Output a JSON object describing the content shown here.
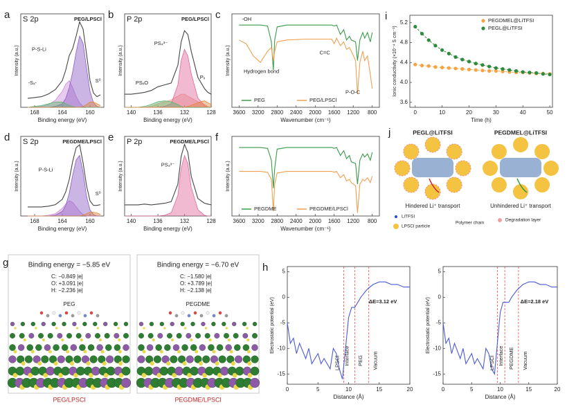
{
  "chart_data": [
    {
      "type": "line",
      "panel": "a",
      "title": "S 2p",
      "subtitle": "PEG/LPSCl",
      "xlabel": "Binding energy (eV)",
      "ylabel": "Intensity (a.u.)",
      "x": [
        169,
        168,
        167,
        166,
        165,
        164,
        163.5,
        163,
        162.5,
        162,
        161.5,
        161,
        160.5,
        160,
        159.5,
        159,
        158.5
      ],
      "xlim": [
        170,
        158
      ],
      "xticks": [
        168,
        164,
        160
      ],
      "ylim": [
        0,
        105
      ],
      "series": [
        {
          "color": "#c98ad8",
          "fill": true,
          "values": [
            0,
            0,
            1,
            3,
            8,
            18,
            26,
            30,
            22,
            12,
            5,
            1,
            0,
            0,
            0,
            0,
            0
          ]
        },
        {
          "color": "#8a5cc4",
          "fill": true,
          "values": [
            0,
            0,
            0,
            0,
            1,
            4,
            10,
            22,
            40,
            62,
            80,
            72,
            44,
            18,
            5,
            1,
            0
          ]
        },
        {
          "color": "#5bb56b",
          "fill": true,
          "values": [
            0,
            1,
            2,
            4,
            6,
            6,
            4,
            2,
            1,
            0,
            0,
            0,
            0,
            0,
            0,
            0,
            0
          ]
        },
        {
          "color": "#e0883a",
          "fill": true,
          "values": [
            0,
            0,
            0,
            0,
            0,
            0,
            0,
            0,
            0,
            0,
            0,
            1,
            3,
            6,
            6,
            4,
            2
          ]
        },
        {
          "color": "#444444",
          "values": [
            10,
            11,
            12,
            15,
            20,
            30,
            42,
            58,
            66,
            80,
            96,
            88,
            60,
            30,
            16,
            12,
            14
          ]
        }
      ],
      "annotations": [
        "P-S-Li",
        "-Sₓ-",
        "S⁰"
      ]
    },
    {
      "type": "line",
      "panel": "b",
      "title": "P 2p",
      "subtitle": "PEG/LPSCl",
      "xlabel": "Binding energy (eV)",
      "ylabel": "Intensity (a.u.)",
      "x": [
        141,
        140,
        139,
        138,
        137,
        136,
        135,
        134,
        133,
        132.5,
        132,
        131.5,
        131,
        130,
        129,
        128.5,
        128
      ],
      "xlim": [
        141,
        128
      ],
      "xticks": [
        140,
        136,
        132,
        128
      ],
      "ylim": [
        0,
        100
      ],
      "series": [
        {
          "color": "#f0a08c",
          "fill": true,
          "values": [
            0,
            0,
            0,
            0,
            1,
            4,
            6,
            8,
            12,
            14,
            14,
            12,
            10,
            6,
            3,
            1,
            0
          ]
        },
        {
          "color": "#e0679a",
          "fill": true,
          "values": [
            0,
            0,
            0,
            0,
            0,
            0,
            1,
            4,
            24,
            50,
            62,
            55,
            36,
            10,
            2,
            0,
            0
          ]
        },
        {
          "color": "#5bb56b",
          "fill": true,
          "values": [
            0,
            0,
            0,
            1,
            3,
            6,
            7,
            6,
            3,
            1,
            0,
            0,
            0,
            0,
            0,
            0,
            0
          ]
        },
        {
          "color": "#e0883a",
          "fill": true,
          "values": [
            0,
            0,
            0,
            0,
            0,
            0,
            0,
            0,
            0,
            0,
            0,
            1,
            2,
            5,
            7,
            5,
            3
          ]
        },
        {
          "color": "#444444",
          "values": [
            14,
            14,
            15,
            16,
            18,
            22,
            24,
            26,
            45,
            70,
            82,
            78,
            60,
            32,
            20,
            16,
            14
          ]
        }
      ],
      "annotations": [
        "PS₄³⁻",
        "PSₓO",
        "Pₓ"
      ]
    },
    {
      "type": "line",
      "panel": "c",
      "xlabel": "Wavenumber (cm⁻¹)",
      "ylabel": "Intensity (a.u.)",
      "x": [
        3600,
        3450,
        3300,
        3150,
        3000,
        2920,
        2880,
        2850,
        2800,
        2600,
        2200,
        1800,
        1650,
        1600,
        1550,
        1470,
        1400,
        1340,
        1280,
        1240,
        1150,
        1110,
        1060,
        1000,
        960,
        900,
        840,
        800
      ],
      "xlim": [
        3750,
        650
      ],
      "xticks": [
        3600,
        3200,
        2800,
        2400,
        2000,
        1600,
        1200,
        800
      ],
      "ylim": [
        0,
        100
      ],
      "series": [
        {
          "name": "PEG",
          "color": "#3a9a4a",
          "values": [
            88,
            88,
            88,
            88,
            87,
            70,
            40,
            72,
            86,
            88,
            88,
            88,
            88,
            87,
            88,
            78,
            83,
            72,
            76,
            72,
            70,
            50,
            72,
            80,
            74,
            80,
            70,
            80
          ]
        },
        {
          "name": "PEG/LPSCl",
          "color": "#f0a050",
          "values": [
            72,
            68,
            55,
            48,
            60,
            64,
            50,
            60,
            70,
            72,
            73,
            73,
            73,
            68,
            74,
            66,
            70,
            62,
            64,
            60,
            50,
            14,
            48,
            60,
            50,
            55,
            35,
            20
          ]
        }
      ],
      "annotations": [
        "-OH",
        "Hydrogen bond",
        "C=C",
        "P-O-C"
      ]
    },
    {
      "type": "scatter",
      "panel": "i",
      "xlabel": "Time (h)",
      "ylabel": "Ionic conductivity (×10⁻⁴ S cm⁻¹)",
      "x": [
        0,
        2.5,
        5,
        7.5,
        10,
        12.5,
        15,
        17.5,
        20,
        22.5,
        25,
        27.5,
        30,
        32.5,
        35,
        37.5,
        40,
        42.5,
        45,
        47.5,
        50
      ],
      "xlim": [
        -2,
        51
      ],
      "xticks": [
        0,
        10,
        20,
        30,
        40,
        50
      ],
      "ylim": [
        3.5,
        5.35
      ],
      "yticks": [
        3.6,
        {
          "value": 4,
          "label": "4.0"
        },
        4.4,
        4.8,
        5.2
      ],
      "series": [
        {
          "name": "PEGDMEL@LiTFSI",
          "color": "#f5a343",
          "values": [
            4.36,
            4.34,
            4.33,
            4.31,
            4.3,
            4.29,
            4.28,
            4.27,
            4.26,
            4.25,
            4.24,
            4.23,
            4.23,
            4.22,
            4.21,
            4.2,
            4.2,
            4.19,
            4.18,
            4.18,
            4.17
          ]
        },
        {
          "name": "PEGL@LiTFSI",
          "color": "#2e8b3e",
          "values": [
            5.12,
            4.98,
            4.85,
            4.74,
            4.65,
            4.58,
            4.51,
            4.46,
            4.42,
            4.38,
            4.35,
            4.32,
            4.29,
            4.27,
            4.25,
            4.23,
            4.21,
            4.2,
            4.19,
            4.17,
            4.16
          ]
        }
      ]
    },
    {
      "type": "line",
      "panel": "d",
      "title": "S 2p",
      "subtitle": "PEGDME/LPSCl",
      "xlabel": "Binding energy (eV)",
      "ylabel": "Intensity (a.u.)",
      "x": [
        169,
        168,
        167,
        166,
        165,
        164,
        163.5,
        163,
        162.5,
        162,
        161.5,
        161,
        160.5,
        160,
        159.5,
        159,
        158.5
      ],
      "xlim": [
        170,
        158
      ],
      "xticks": [
        168,
        164,
        160
      ],
      "ylim": [
        0,
        105
      ],
      "series": [
        {
          "color": "#c98ad8",
          "fill": true,
          "values": [
            0,
            0,
            0,
            1,
            3,
            10,
            16,
            20,
            18,
            12,
            6,
            2,
            0,
            0,
            0,
            0,
            0
          ]
        },
        {
          "color": "#8a5cc4",
          "fill": true,
          "values": [
            0,
            0,
            0,
            0,
            1,
            6,
            14,
            30,
            54,
            74,
            80,
            58,
            26,
            8,
            2,
            0,
            0
          ]
        },
        {
          "color": "#e0883a",
          "fill": true,
          "values": [
            0,
            0,
            0,
            0,
            0,
            0,
            0,
            0,
            0,
            0,
            0,
            1,
            3,
            5,
            5,
            4,
            2
          ]
        },
        {
          "color": "#444444",
          "values": [
            12,
            12,
            12,
            13,
            15,
            22,
            32,
            48,
            72,
            90,
            94,
            70,
            40,
            20,
            14,
            14,
            15
          ]
        }
      ],
      "annotations": [
        "P-S-Li",
        "S⁰"
      ]
    },
    {
      "type": "line",
      "panel": "e",
      "title": "P 2p",
      "subtitle": "PEGDME/LPSCl",
      "xlabel": "Binding energy (eV)",
      "ylabel": "Intensity (a.u.)",
      "x": [
        141,
        140,
        139,
        138,
        137,
        136,
        135,
        134,
        133,
        132.5,
        132,
        131.5,
        131,
        130,
        129,
        128.5,
        128
      ],
      "xlim": [
        141,
        128
      ],
      "xticks": [
        140,
        136,
        132,
        128
      ],
      "ylim": [
        0,
        100
      ],
      "series": [
        {
          "color": "#e0679a",
          "fill": true,
          "values": [
            0,
            0,
            0,
            0,
            0,
            0,
            1,
            4,
            26,
            60,
            76,
            66,
            36,
            8,
            1,
            0,
            0
          ]
        },
        {
          "color": "#444444",
          "values": [
            14,
            14,
            14,
            15,
            14,
            15,
            16,
            18,
            40,
            75,
            90,
            80,
            50,
            22,
            16,
            15,
            14
          ]
        }
      ],
      "annotations": [
        "PS₄³⁻"
      ]
    },
    {
      "type": "line",
      "panel": "f",
      "xlabel": "Wavenumber (cm⁻¹)",
      "ylabel": "Intensity (a.u.)",
      "x": [
        3600,
        3450,
        3300,
        3150,
        3000,
        2920,
        2880,
        2850,
        2800,
        2600,
        2200,
        1800,
        1650,
        1600,
        1550,
        1470,
        1400,
        1340,
        1280,
        1240,
        1150,
        1110,
        1060,
        1000,
        960,
        900,
        840,
        800
      ],
      "xlim": [
        3750,
        650
      ],
      "xticks": [
        3600,
        3200,
        2800,
        2400,
        2000,
        1600,
        1200,
        800
      ],
      "ylim": [
        0,
        100
      ],
      "series": [
        {
          "name": "PEGDME",
          "color": "#3a9a4a",
          "values": [
            86,
            86,
            86,
            86,
            85,
            70,
            35,
            60,
            84,
            86,
            86,
            86,
            86,
            85,
            86,
            76,
            82,
            72,
            76,
            68,
            66,
            40,
            70,
            78,
            74,
            78,
            70,
            80
          ]
        },
        {
          "name": "PEGDME/LPSCl",
          "color": "#f0a050",
          "values": [
            56,
            56,
            56,
            56,
            55,
            46,
            6,
            40,
            54,
            56,
            56,
            56,
            56,
            55,
            56,
            48,
            52,
            44,
            46,
            42,
            38,
            4,
            40,
            46,
            44,
            48,
            42,
            50
          ]
        }
      ]
    },
    {
      "type": "line",
      "panel": "h",
      "xlabel": "Distance (Å)",
      "ylabel": "Electrostatic potential (eV)",
      "x": [
        0,
        0.5,
        1,
        1.5,
        2,
        3,
        3.5,
        4,
        5,
        5.5,
        6,
        7,
        7.5,
        8,
        8.5,
        9,
        9.5,
        10,
        10.5,
        11,
        11.5,
        12,
        13,
        14,
        15,
        16,
        17,
        18,
        19,
        20
      ],
      "xlim": [
        0,
        20
      ],
      "xticks": [
        0,
        5,
        10,
        15,
        20
      ],
      "ylim": [
        -17,
        6
      ],
      "yticks": [
        -15,
        -10,
        -5,
        0,
        5
      ],
      "vlines": [
        9.2,
        11,
        13.3
      ],
      "series": [
        {
          "color": "#4a5ad8",
          "values": [
            -5,
            -9,
            -8,
            -11,
            -9,
            -12,
            -10,
            -13,
            -11,
            -13,
            -12,
            -14,
            -10,
            -11,
            -14,
            -16,
            -10,
            -4,
            -2,
            -2,
            -1,
            0,
            1.5,
            2.5,
            3,
            3,
            2.5,
            2.5,
            2,
            2
          ]
        }
      ],
      "annotations": [
        "ΔE=3.12 eV",
        "LPSCl",
        "Interface",
        "PEG",
        "Vacuum"
      ]
    },
    {
      "type": "line",
      "xlabel": "Distance (Å)",
      "ylabel": "Electrostatic potential (eV)",
      "x": [
        0,
        0.5,
        1,
        1.5,
        2,
        3,
        3.5,
        4,
        5,
        5.5,
        6,
        7,
        7.5,
        8,
        8.5,
        9,
        9.5,
        10,
        10.5,
        11,
        11.5,
        12,
        13,
        14,
        15,
        16,
        17,
        18,
        19,
        20
      ],
      "xlim": [
        0,
        20
      ],
      "xticks": [
        0,
        5,
        10,
        15,
        20
      ],
      "ylim": [
        -17,
        6
      ],
      "yticks": [
        -15,
        -10,
        -5,
        0,
        5
      ],
      "vlines": [
        9.5,
        10.8,
        13.2
      ],
      "series": [
        {
          "color": "#4a5ad8",
          "values": [
            -5,
            -9,
            -8,
            -11,
            -9,
            -12,
            -10,
            -13,
            -11,
            -13,
            -12,
            -14,
            -10,
            -11,
            -14,
            -15,
            -9,
            -3,
            -1,
            -1,
            -1,
            0,
            1.5,
            2.5,
            3,
            3,
            2.5,
            2.5,
            2,
            2
          ]
        }
      ],
      "annotations": [
        "ΔE=2.18 eV",
        "LPSCl",
        "Interface",
        "PEGDME",
        "Vacuum"
      ]
    }
  ],
  "panel_g": {
    "label": "g",
    "left": {
      "energy": "Binding energy = −5.85 eV",
      "charges": [
        "C: −0.849 |e|",
        "O: +3.091 |e|",
        "H: −2.236 |e|"
      ],
      "molecule": "PEG",
      "caption": "PEG/LPSCl"
    },
    "right": {
      "energy": "Binding energy = −6.70 eV",
      "charges": [
        "C: −1.580 |e|",
        "O: +3.789 |e|",
        "H: −2.138 |e|"
      ],
      "molecule": "PEGDME",
      "caption": "PEGDME/LPSCl"
    }
  },
  "panel_j": {
    "label": "j",
    "titles": [
      "PEGL@LiTFSI",
      "PEGDMEL@LiTFSI"
    ],
    "captions": [
      "Hindered Li⁺ transport",
      "Unhindered Li⁺ transport"
    ],
    "legend": [
      "LiTFSI",
      "LPSCl particle",
      "Polymer chain",
      "Degradation layer"
    ]
  }
}
